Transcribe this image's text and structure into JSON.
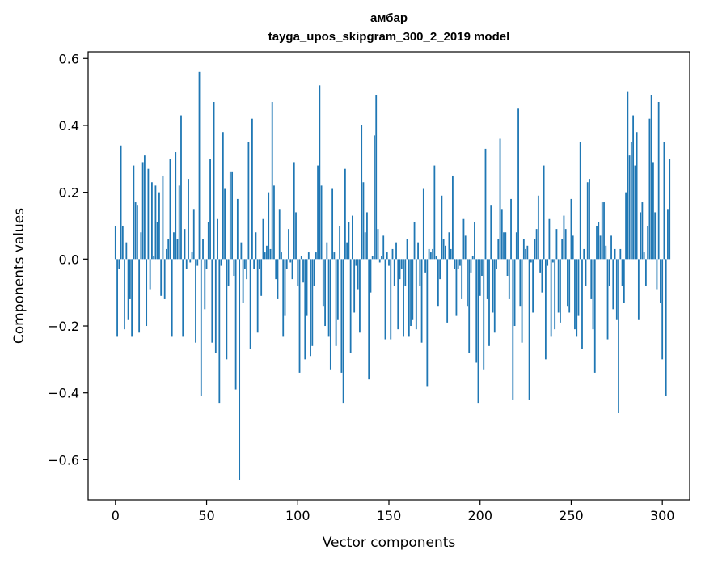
{
  "chart_data": {
    "type": "bar",
    "title": "амбар",
    "subtitle": "tayga_upos_skipgram_300_2_2019 model",
    "xlabel": "Vector components",
    "ylabel": "Components values",
    "xlim": [
      -15,
      315
    ],
    "ylim": [
      -0.72,
      0.62
    ],
    "xticks": [
      0,
      50,
      100,
      150,
      200,
      250,
      300
    ],
    "xtick_labels": [
      "0",
      "50",
      "100",
      "150",
      "200",
      "250",
      "300"
    ],
    "yticks": [
      -0.6,
      -0.4,
      -0.2,
      0.0,
      0.2,
      0.4,
      0.6
    ],
    "ytick_labels": [
      "−0.6",
      "−0.4",
      "−0.2",
      "0.0",
      "0.2",
      "0.4",
      "0.6"
    ],
    "bar_color": "#1f77b4",
    "grid": false,
    "legend": "none",
    "values": [
      0.1,
      -0.23,
      -0.03,
      0.34,
      0.1,
      -0.21,
      0.05,
      -0.18,
      -0.12,
      -0.23,
      0.28,
      0.17,
      0.16,
      -0.22,
      0.08,
      0.29,
      0.31,
      -0.2,
      0.27,
      -0.09,
      0.23,
      0.01,
      0.22,
      0.11,
      0.2,
      -0.11,
      0.25,
      -0.12,
      0.03,
      0.06,
      0.3,
      -0.23,
      0.08,
      0.32,
      0.06,
      0.22,
      0.43,
      -0.23,
      0.09,
      -0.03,
      0.24,
      -0.01,
      0.02,
      0.15,
      -0.25,
      -0.02,
      0.56,
      -0.41,
      0.06,
      -0.15,
      -0.03,
      0.11,
      0.3,
      -0.25,
      0.47,
      -0.28,
      0.12,
      -0.43,
      -0.02,
      0.38,
      0.21,
      -0.3,
      -0.08,
      0.26,
      0.26,
      -0.05,
      -0.39,
      0.18,
      -0.66,
      0.05,
      -0.13,
      -0.03,
      -0.06,
      0.35,
      -0.27,
      0.42,
      -0.03,
      0.08,
      -0.22,
      -0.03,
      -0.11,
      0.12,
      0.02,
      0.04,
      0.2,
      0.03,
      0.47,
      0.22,
      -0.06,
      -0.12,
      0.15,
      0.02,
      -0.23,
      -0.17,
      -0.03,
      0.09,
      -0.01,
      -0.06,
      0.29,
      0.14,
      -0.08,
      -0.34,
      0.01,
      -0.07,
      -0.3,
      -0.17,
      0.02,
      -0.29,
      -0.26,
      -0.08,
      0.02,
      0.28,
      0.52,
      0.22,
      -0.14,
      -0.2,
      0.05,
      -0.23,
      -0.33,
      0.21,
      0.02,
      -0.26,
      -0.18,
      0.1,
      -0.34,
      -0.43,
      0.27,
      0.05,
      0.11,
      -0.28,
      0.13,
      -0.16,
      -0.02,
      -0.09,
      -0.22,
      0.4,
      0.23,
      0.08,
      0.14,
      -0.36,
      -0.1,
      0.01,
      0.37,
      0.49,
      0.09,
      -0.01,
      0.01,
      0.07,
      -0.24,
      0.02,
      -0.02,
      -0.24,
      0.03,
      -0.08,
      0.05,
      -0.21,
      -0.06,
      -0.03,
      -0.23,
      -0.08,
      0.06,
      -0.23,
      -0.2,
      -0.18,
      0.11,
      -0.21,
      0.05,
      -0.08,
      -0.25,
      0.21,
      -0.04,
      -0.38,
      0.03,
      0.02,
      0.03,
      0.28,
      0.01,
      -0.14,
      -0.06,
      0.19,
      0.06,
      0.04,
      -0.19,
      0.08,
      0.03,
      0.25,
      -0.03,
      -0.17,
      -0.03,
      -0.02,
      -0.12,
      0.12,
      0.07,
      -0.14,
      -0.28,
      -0.04,
      0.01,
      0.11,
      -0.31,
      -0.43,
      -0.11,
      -0.05,
      -0.33,
      0.33,
      -0.12,
      -0.26,
      0.16,
      -0.16,
      -0.22,
      -0.03,
      0.06,
      0.36,
      0.15,
      0.08,
      0.08,
      -0.05,
      -0.12,
      0.18,
      -0.42,
      -0.2,
      0.08,
      0.45,
      -0.14,
      -0.25,
      0.06,
      0.03,
      0.04,
      -0.42,
      -0.01,
      -0.16,
      0.06,
      0.09,
      0.19,
      -0.04,
      -0.1,
      0.28,
      -0.3,
      -0.02,
      0.12,
      -0.23,
      -0.01,
      -0.21,
      0.09,
      -0.16,
      -0.19,
      0.06,
      0.13,
      0.09,
      -0.14,
      -0.16,
      0.18,
      0.07,
      -0.21,
      -0.23,
      -0.17,
      0.35,
      -0.27,
      0.03,
      -0.08,
      0.23,
      0.24,
      -0.12,
      -0.21,
      -0.34,
      0.1,
      0.11,
      0.07,
      0.17,
      0.17,
      0.04,
      -0.24,
      -0.08,
      0.07,
      -0.15,
      0.03,
      -0.18,
      -0.46,
      0.03,
      -0.08,
      -0.13,
      0.2,
      0.5,
      0.31,
      0.35,
      0.43,
      0.28,
      0.38,
      -0.18,
      0.14,
      0.17,
      0.02,
      -0.08,
      0.1,
      0.42,
      0.49,
      0.29,
      0.14,
      -0.09,
      0.47,
      -0.13,
      -0.3,
      0.35,
      -0.41,
      0.15,
      0.3
    ]
  }
}
